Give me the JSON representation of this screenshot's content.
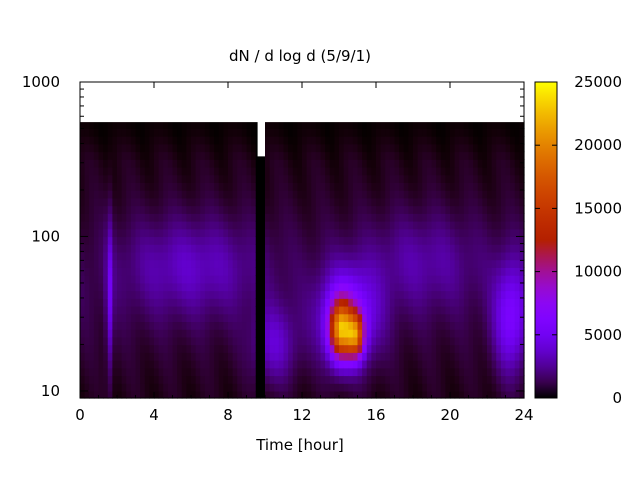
{
  "chart_data": {
    "type": "heatmap",
    "title": "dN / d log d (5/9/1)",
    "xlabel": "Time [hour]",
    "ylabel": "",
    "x_ticks": [
      0,
      4,
      8,
      12,
      16,
      20,
      24
    ],
    "x_range": [
      0,
      24
    ],
    "y_scale": "log",
    "y_ticks": [
      10,
      100,
      1000
    ],
    "y_range": [
      9,
      1000
    ],
    "colorbar": {
      "ticks": [
        0,
        5000,
        10000,
        15000,
        20000,
        25000
      ],
      "range": [
        0,
        25000
      ],
      "colormap": "gnuplot"
    },
    "grid": false,
    "x_step_hours": 0.25,
    "log_d_levels": [
      0.95,
      1.0,
      1.05,
      1.1,
      1.15,
      1.2,
      1.25,
      1.3,
      1.35,
      1.4,
      1.45,
      1.5,
      1.55,
      1.6,
      1.65,
      1.7,
      1.75,
      1.8,
      1.85,
      1.9,
      1.95,
      2.0,
      2.05,
      2.1,
      2.15,
      2.2,
      2.25,
      2.3,
      2.35,
      2.4,
      2.45,
      2.5,
      2.55,
      2.6,
      2.65,
      2.7,
      2.75
    ],
    "data_upper_limit_d": 550,
    "data_gap_hours": [
      9.6,
      10.0
    ],
    "features": [
      {
        "center_hour": 14.1,
        "center_d": 25,
        "width_hours": 0.6,
        "width_log_d": 0.18,
        "peak": 16000
      },
      {
        "center_hour": 14.9,
        "center_d": 23,
        "width_hours": 0.45,
        "width_log_d": 0.14,
        "peak": 13000
      },
      {
        "center_hour": 14.5,
        "center_d": 30,
        "width_hours": 1.5,
        "width_log_d": 0.3,
        "peak": 6500
      },
      {
        "center_hour": 23.3,
        "center_d": 30,
        "width_hours": 0.9,
        "width_log_d": 0.35,
        "peak": 5000
      },
      {
        "center_hour": 1.6,
        "center_d": 40,
        "width_hours": 0.18,
        "width_log_d": 0.5,
        "peak": 3500
      },
      {
        "center_hour": 10.5,
        "center_d": 20,
        "width_hours": 1.2,
        "width_log_d": 0.25,
        "peak": 3000
      },
      {
        "center_hour": 6.0,
        "center_d": 65,
        "width_hours": 3.5,
        "width_log_d": 0.3,
        "peak": 2400
      },
      {
        "center_hour": 18.5,
        "center_d": 70,
        "width_hours": 3.0,
        "width_log_d": 0.3,
        "peak": 1800
      }
    ],
    "background_level": 900
  }
}
